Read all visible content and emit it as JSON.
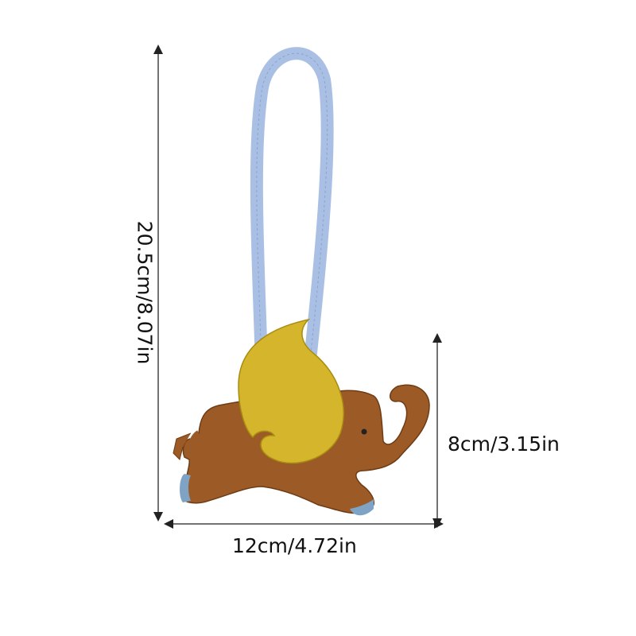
{
  "product": {
    "description_icon": "elephant-bag-charm-with-wing",
    "colors": {
      "body": "#9c5a26",
      "wing": "#d4b52c",
      "strap": "#a9c0e4",
      "feet": "#7fa3c4"
    }
  },
  "dimensions": {
    "height_label": "20.5cm/8.07in",
    "charm_height_label": "8cm/3.15in",
    "width_label": "12cm/4.72in"
  }
}
